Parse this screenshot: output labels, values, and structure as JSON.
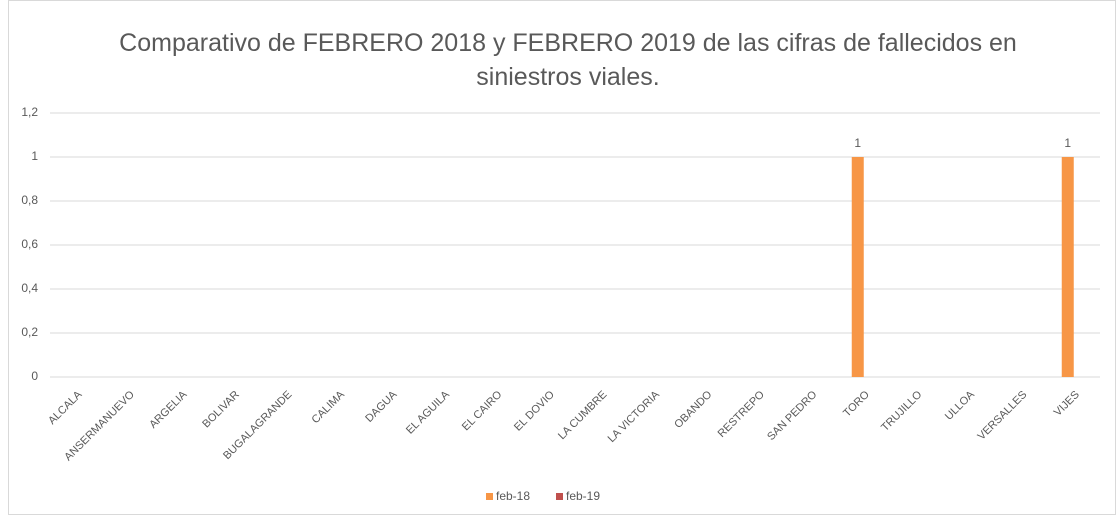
{
  "chart_data": {
    "type": "bar",
    "title": "Comparativo de FEBRERO 2018 y FEBRERO 2019 de las cifras de fallecidos en siniestros viales.",
    "categories": [
      "ALCALA",
      "ANSERMANUEVO",
      "ARGELIA",
      "BOLIVAR",
      "BUGALAGRANDE",
      "CALIMA",
      "DAGUA",
      "EL AGUILA",
      "EL CAIRO",
      "EL DOVIO",
      "LA CUMBRE",
      "LA VICTORIA",
      "OBANDO",
      "RESTREPO",
      "SAN PEDRO",
      "TORO",
      "TRUJILLO",
      "ULLOA",
      "VERSALLES",
      "VIJES"
    ],
    "series": [
      {
        "name": "feb-18",
        "color": "#f79646",
        "values": [
          null,
          null,
          null,
          null,
          null,
          null,
          null,
          null,
          null,
          null,
          null,
          null,
          null,
          null,
          null,
          1,
          null,
          null,
          null,
          1
        ]
      },
      {
        "name": "feb-19",
        "color": "#c0504d",
        "values": [
          null,
          null,
          null,
          null,
          null,
          null,
          null,
          null,
          null,
          null,
          null,
          null,
          null,
          null,
          null,
          null,
          null,
          null,
          null,
          null
        ]
      }
    ],
    "ylim": [
      0,
      1.2
    ],
    "yticks": [
      0,
      {
        "value": 0.2,
        "label": "0,2"
      },
      {
        "value": 0.4,
        "label": "0,4"
      },
      {
        "value": 0.6,
        "label": "0,6"
      },
      {
        "value": 0.8,
        "label": "0,8"
      },
      1,
      {
        "value": 1.2,
        "label": "1,2"
      }
    ],
    "grid": true,
    "legend": "bottom"
  }
}
